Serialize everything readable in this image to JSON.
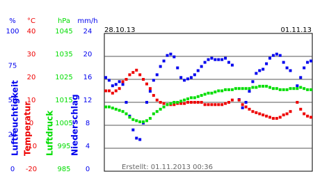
{
  "chart_data": {
    "type": "scatter",
    "date_start": "28.10.13",
    "date_end": "01.11.13",
    "footer": "Erstellt: 01.11.2013 00:36",
    "ylabel": "Luftfeuchtigkeit",
    "yunit": "%",
    "ycolor": "#0000ee",
    "ylim": [
      0,
      100
    ],
    "yticks": [
      0,
      25,
      50,
      75,
      100
    ],
    "y2label": "Temperatur",
    "y2unit": "°C",
    "y2color": "#ee0000",
    "y2lim": [
      -20,
      40
    ],
    "y2ticks": [
      -20,
      -10,
      0,
      10,
      20,
      30,
      40
    ],
    "y3label": "Luftdruck",
    "y3unit": "hPa",
    "y3color": "#00dd00",
    "y3lim": [
      985,
      1045
    ],
    "y3ticks": [
      985,
      995,
      1005,
      1015,
      1025,
      1035,
      1045
    ],
    "y4label": "Niederschlag",
    "y4unit": "mm/h",
    "y4color": "#0000ee",
    "y4lim": [
      0,
      24
    ],
    "y4ticks": [
      0,
      4,
      8,
      12,
      16,
      20,
      24
    ],
    "grid": true,
    "series": [
      {
        "name": "Luftfeuchtigkeit",
        "color": "#0000ee",
        "axis": "y",
        "values": [
          68,
          66,
          62,
          63,
          65,
          63,
          50,
          40,
          30,
          24,
          23,
          35,
          50,
          58,
          66,
          70,
          76,
          80,
          84,
          85,
          83,
          75,
          68,
          66,
          67,
          68,
          70,
          73,
          76,
          79,
          81,
          82,
          81,
          81,
          81,
          82,
          79,
          77,
          null,
          52,
          46,
          50,
          58,
          65,
          71,
          73,
          74,
          78,
          82,
          84,
          85,
          84,
          79,
          75,
          73,
          null,
          62,
          68,
          75,
          79,
          80
        ]
      },
      {
        "name": "Temperatur",
        "color": "#ee0000",
        "axis": "y2",
        "values": [
          15,
          15,
          14,
          15,
          16,
          19,
          20,
          22,
          23,
          24,
          22,
          20,
          18,
          16,
          13,
          11,
          10,
          9.5,
          9,
          9,
          9,
          9.5,
          9.5,
          9.5,
          10,
          10,
          10,
          10,
          10,
          9,
          9,
          9,
          9,
          9,
          9,
          9.5,
          10,
          11,
          null,
          11,
          9,
          8,
          7,
          6,
          5.5,
          5,
          4.5,
          4,
          3.5,
          3,
          3,
          3.5,
          4.5,
          5,
          6,
          null,
          10,
          7,
          5,
          4,
          3.5
        ]
      },
      {
        "name": "Luftdruck",
        "color": "#00dd00",
        "axis": "y3",
        "values": [
          1013,
          1013,
          1012.5,
          1012,
          1011.5,
          1011,
          1010,
          1008.5,
          1007.5,
          1007,
          1006.5,
          1006.5,
          1007,
          1008,
          1010,
          1011,
          1012,
          1013,
          1014,
          1014.5,
          1015,
          1015,
          1015.5,
          1016,
          1016.5,
          1017,
          1017,
          1017.5,
          1018,
          1018.5,
          1019,
          1019,
          1019.5,
          1020,
          1020,
          1020.5,
          1020.5,
          1020.5,
          1021,
          1021,
          1021,
          1021,
          1021,
          1021.5,
          1021.5,
          1022,
          1022,
          1022,
          1021.5,
          1021,
          1021,
          1020.5,
          1020.5,
          1020.5,
          1021,
          1021,
          1021,
          1021.5,
          1021,
          1020.5,
          1020.5
        ]
      }
    ]
  }
}
